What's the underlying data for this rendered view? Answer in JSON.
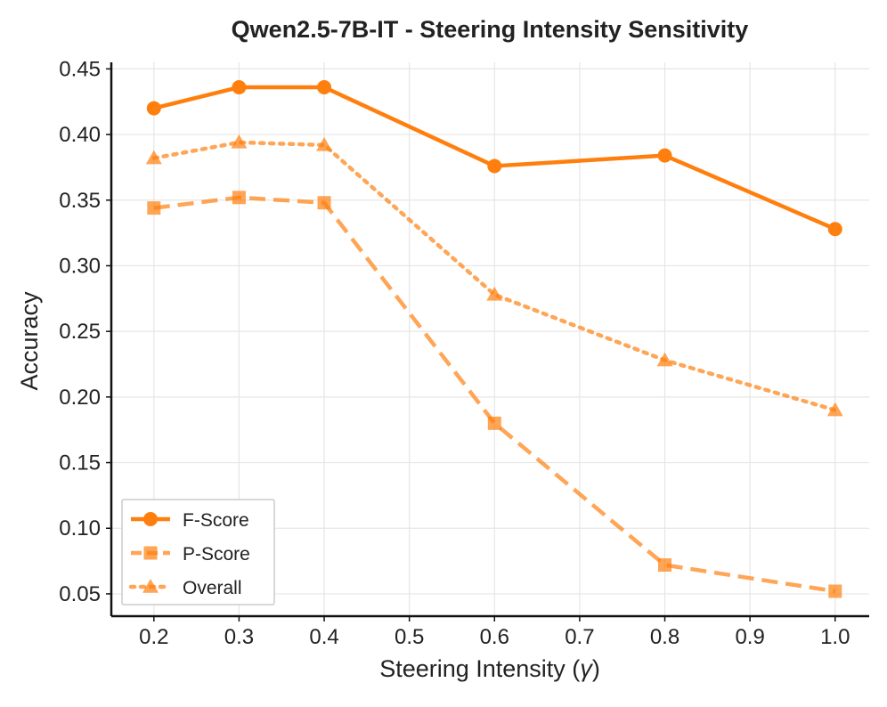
{
  "chart_data": {
    "type": "line",
    "title": "Qwen2.5-7B-IT - Steering Intensity Sensitivity",
    "xlabel_text": "Steering Intensity (",
    "xlabel_symbol": "γ",
    "xlabel_end": ")",
    "ylabel": "Accuracy",
    "x": [
      0.2,
      0.3,
      0.4,
      0.6,
      0.8,
      1.0
    ],
    "xlim": [
      0.15,
      1.04
    ],
    "ylim": [
      0.033,
      0.455
    ],
    "xticks": [
      0.2,
      0.3,
      0.4,
      0.5,
      0.6,
      0.7,
      0.8,
      0.9,
      1.0
    ],
    "xtick_labels": [
      "0.2",
      "0.3",
      "0.4",
      "0.5",
      "0.6",
      "0.7",
      "0.8",
      "0.9",
      "1.0"
    ],
    "yticks": [
      0.05,
      0.1,
      0.15,
      0.2,
      0.25,
      0.3,
      0.35,
      0.4,
      0.45
    ],
    "ytick_labels": [
      "0.05",
      "0.10",
      "0.15",
      "0.20",
      "0.25",
      "0.30",
      "0.35",
      "0.40",
      "0.45"
    ],
    "grid": true,
    "legend_position": "lower-left",
    "series": [
      {
        "name": "F-Score",
        "values": [
          0.42,
          0.436,
          0.436,
          0.376,
          0.384,
          0.328
        ],
        "color": "#ff7f0e",
        "dash": "solid",
        "marker": "circle",
        "opacity": 1.0
      },
      {
        "name": "P-Score",
        "values": [
          0.344,
          0.352,
          0.348,
          0.18,
          0.072,
          0.052
        ],
        "color": "#ff7f0e",
        "dash": "dashed",
        "marker": "square",
        "opacity": 0.7
      },
      {
        "name": "Overall",
        "values": [
          0.382,
          0.394,
          0.392,
          0.278,
          0.228,
          0.19
        ],
        "color": "#ff7f0e",
        "dash": "dotted",
        "marker": "triangle",
        "opacity": 0.7
      }
    ]
  }
}
